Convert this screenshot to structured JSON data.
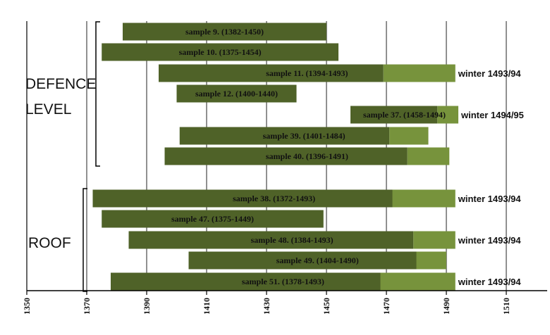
{
  "chart_data": {
    "type": "bar",
    "orientation": "horizontal",
    "xlim": [
      1350,
      1510
    ],
    "x_ticks": [
      "1350",
      "1370",
      "1390",
      "1410",
      "1430",
      "1450",
      "1470",
      "1490",
      "1510"
    ],
    "grid": "vertical lines",
    "colors": {
      "heartwood": "#4f6228",
      "sapwood": "#77933c",
      "axis": "#000000"
    },
    "groups": [
      {
        "name": "DEFENCE LEVEL",
        "lines": [
          "DEFENCE",
          "LEVEL"
        ],
        "first_row": 0,
        "last_row": 6
      },
      {
        "name": "ROOF",
        "lines": [
          "ROOF"
        ],
        "first_row": 7,
        "last_row": 11
      }
    ],
    "bars": [
      {
        "label": "sample 9. (1382-1450)",
        "start": 1382,
        "end": 1450,
        "sapwood_start": null,
        "sapwood_end": null,
        "note": ""
      },
      {
        "label": "sample 10. (1375-1454)",
        "start": 1375,
        "end": 1454,
        "sapwood_start": null,
        "sapwood_end": null,
        "note": ""
      },
      {
        "label": "sample 11. (1394-1493)",
        "start": 1394,
        "end": 1469,
        "sapwood_start": 1469,
        "sapwood_end": 1493,
        "note": "winter 1493/94"
      },
      {
        "label": "sample 12. (1400-1440)",
        "start": 1400,
        "end": 1440,
        "sapwood_start": null,
        "sapwood_end": null,
        "note": ""
      },
      {
        "label": "sample 37. (1458-1494)",
        "start": 1458,
        "end": 1487,
        "sapwood_start": 1487,
        "sapwood_end": 1494,
        "note": "winter 1494/95"
      },
      {
        "label": "sample 39. (1401-1484)",
        "start": 1401,
        "end": 1471,
        "sapwood_start": 1471,
        "sapwood_end": 1484,
        "note": ""
      },
      {
        "label": "sample 40. (1396-1491)",
        "start": 1396,
        "end": 1477,
        "sapwood_start": 1477,
        "sapwood_end": 1491,
        "note": ""
      },
      {
        "label": "sample 38. (1372-1493)",
        "start": 1372,
        "end": 1472,
        "sapwood_start": 1472,
        "sapwood_end": 1493,
        "note": "winter 1493/94"
      },
      {
        "label": "sample 47. (1375-1449)",
        "start": 1375,
        "end": 1449,
        "sapwood_start": null,
        "sapwood_end": null,
        "note": ""
      },
      {
        "label": "sample 48. (1384-1493)",
        "start": 1384,
        "end": 1479,
        "sapwood_start": 1479,
        "sapwood_end": 1493,
        "note": "winter 1493/94"
      },
      {
        "label": "sample 49. (1404-1490)",
        "start": 1404,
        "end": 1480,
        "sapwood_start": 1480,
        "sapwood_end": 1490,
        "note": ""
      },
      {
        "label": "sample 51. (1378-1493)",
        "start": 1378,
        "end": 1468,
        "sapwood_start": 1468,
        "sapwood_end": 1493,
        "note": "winter 1493/94"
      }
    ]
  }
}
